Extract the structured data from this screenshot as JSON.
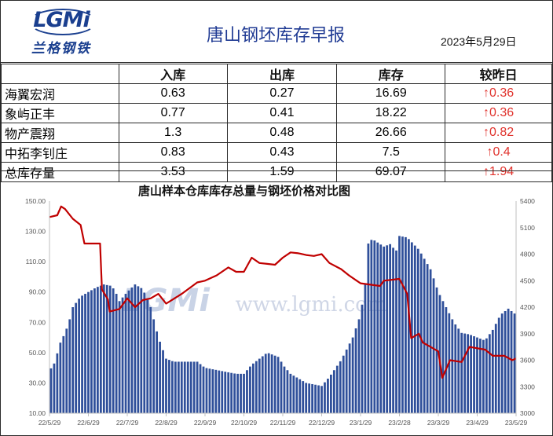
{
  "header": {
    "logo_text": "LGMi",
    "logo_sub": "兰格钢铁",
    "title": "唐山钢坯库存早报",
    "date": "2023年5月29日"
  },
  "table": {
    "columns": [
      "",
      "入库",
      "出库",
      "库存",
      "较昨日"
    ],
    "rows": [
      {
        "name": "海翼宏润",
        "in": "0.63",
        "out": "0.27",
        "stock": "16.69",
        "change": "↑0.36"
      },
      {
        "name": "象屿正丰",
        "in": "0.77",
        "out": "0.41",
        "stock": "18.22",
        "change": "↑0.36"
      },
      {
        "name": "物产震翔",
        "in": "1.3",
        "out": "0.48",
        "stock": "26.66",
        "change": "↑0.82"
      },
      {
        "name": "中拓李钊庄",
        "in": "0.83",
        "out": "0.43",
        "stock": "7.5",
        "change": "↑0.4"
      },
      {
        "name": "总库存量",
        "in": "3.53",
        "out": "1.59",
        "stock": "69.07",
        "change": "↑1.94"
      }
    ]
  },
  "watermark": {
    "logo": "LGMi",
    "url": "www.lgmi.com"
  },
  "colors": {
    "bar": "#2f4f9a",
    "line": "#c00000",
    "title": "#1f3a93",
    "up": "#e0322c"
  },
  "chart_data": {
    "type": "bar",
    "title": "唐山样本仓库库存总量与钢坯价格对比图",
    "x_ticks": [
      "22/5/29",
      "22/6/29",
      "22/7/29",
      "22/8/29",
      "22/9/29",
      "22/10/29",
      "22/11/29",
      "22/12/29",
      "23/1/29",
      "23/2/28",
      "23/3/29",
      "23/4/29",
      "23/5/29"
    ],
    "y_left": {
      "ticks": [
        "10.00",
        "30.00",
        "50.00",
        "70.00",
        "90.00",
        "110.00",
        "130.00",
        "150.00"
      ],
      "min": 10,
      "max": 150
    },
    "y_right": {
      "ticks": [
        "3000",
        "3300",
        "3600",
        "3900",
        "4200",
        "4500",
        "4800",
        "5100",
        "5400"
      ],
      "min": 3000,
      "max": 5400
    },
    "anchors_month": [
      0,
      12
    ],
    "series": [
      {
        "kind": "bar",
        "axis": "left",
        "points": [
          [
            0,
            38
          ],
          [
            0.15,
            44
          ],
          [
            0.25,
            55
          ],
          [
            0.4,
            63
          ],
          [
            0.5,
            70
          ],
          [
            0.6,
            80
          ],
          [
            0.8,
            87
          ],
          [
            1.0,
            90
          ],
          [
            1.2,
            93
          ],
          [
            1.4,
            95
          ],
          [
            1.6,
            94
          ],
          [
            1.7,
            90
          ],
          [
            1.8,
            84
          ],
          [
            2.0,
            90
          ],
          [
            2.2,
            95
          ],
          [
            2.4,
            92
          ],
          [
            2.6,
            80
          ],
          [
            2.8,
            60
          ],
          [
            3.0,
            46
          ],
          [
            3.2,
            44
          ],
          [
            3.8,
            44
          ],
          [
            4.0,
            40
          ],
          [
            4.4,
            38
          ],
          [
            4.8,
            36
          ],
          [
            5.0,
            36
          ],
          [
            5.2,
            42
          ],
          [
            5.6,
            50
          ],
          [
            5.9,
            47
          ],
          [
            6.0,
            42
          ],
          [
            6.2,
            36
          ],
          [
            6.6,
            30
          ],
          [
            7.0,
            28
          ],
          [
            7.2,
            34
          ],
          [
            7.5,
            45
          ],
          [
            7.8,
            60
          ],
          [
            8.0,
            75
          ],
          [
            8.15,
            100
          ],
          [
            8.2,
            122
          ],
          [
            8.3,
            125
          ],
          [
            8.6,
            120
          ],
          [
            8.8,
            122
          ],
          [
            8.9,
            115
          ],
          [
            9.0,
            127
          ],
          [
            9.2,
            126
          ],
          [
            9.5,
            118
          ],
          [
            9.8,
            105
          ],
          [
            10.0,
            90
          ],
          [
            10.2,
            80
          ],
          [
            10.4,
            70
          ],
          [
            10.6,
            63
          ],
          [
            10.8,
            62
          ],
          [
            11.0,
            60
          ],
          [
            11.2,
            58
          ],
          [
            11.4,
            65
          ],
          [
            11.6,
            75
          ],
          [
            11.8,
            79
          ],
          [
            12.0,
            75
          ]
        ]
      },
      {
        "kind": "line",
        "axis": "right",
        "points": [
          [
            0,
            5220
          ],
          [
            0.2,
            5240
          ],
          [
            0.3,
            5340
          ],
          [
            0.4,
            5310
          ],
          [
            0.6,
            5200
          ],
          [
            0.8,
            5130
          ],
          [
            0.9,
            4920
          ],
          [
            1.3,
            4920
          ],
          [
            1.35,
            4400
          ],
          [
            1.5,
            4290
          ],
          [
            1.55,
            4150
          ],
          [
            1.8,
            4180
          ],
          [
            2.0,
            4300
          ],
          [
            2.2,
            4200
          ],
          [
            2.4,
            4280
          ],
          [
            2.6,
            4300
          ],
          [
            2.8,
            4350
          ],
          [
            3.0,
            4240
          ],
          [
            3.4,
            4350
          ],
          [
            3.8,
            4480
          ],
          [
            4.0,
            4500
          ],
          [
            4.3,
            4560
          ],
          [
            4.6,
            4650
          ],
          [
            4.8,
            4600
          ],
          [
            5.0,
            4600
          ],
          [
            5.2,
            4760
          ],
          [
            5.4,
            4700
          ],
          [
            5.6,
            4690
          ],
          [
            5.8,
            4680
          ],
          [
            6.0,
            4760
          ],
          [
            6.2,
            4820
          ],
          [
            6.4,
            4810
          ],
          [
            6.6,
            4790
          ],
          [
            6.8,
            4780
          ],
          [
            7.0,
            4800
          ],
          [
            7.2,
            4700
          ],
          [
            7.5,
            4630
          ],
          [
            7.7,
            4560
          ],
          [
            7.9,
            4500
          ],
          [
            8.0,
            4470
          ],
          [
            8.5,
            4440
          ],
          [
            8.6,
            4500
          ],
          [
            9.0,
            4520
          ],
          [
            9.2,
            4350
          ],
          [
            9.3,
            3850
          ],
          [
            9.5,
            3900
          ],
          [
            9.6,
            3800
          ],
          [
            9.8,
            3750
          ],
          [
            10.0,
            3700
          ],
          [
            10.1,
            3400
          ],
          [
            10.3,
            3600
          ],
          [
            10.6,
            3580
          ],
          [
            10.8,
            3750
          ],
          [
            11.2,
            3720
          ],
          [
            11.4,
            3650
          ],
          [
            11.7,
            3650
          ],
          [
            11.9,
            3600
          ],
          [
            12.0,
            3620
          ]
        ]
      }
    ],
    "legend": "none"
  }
}
